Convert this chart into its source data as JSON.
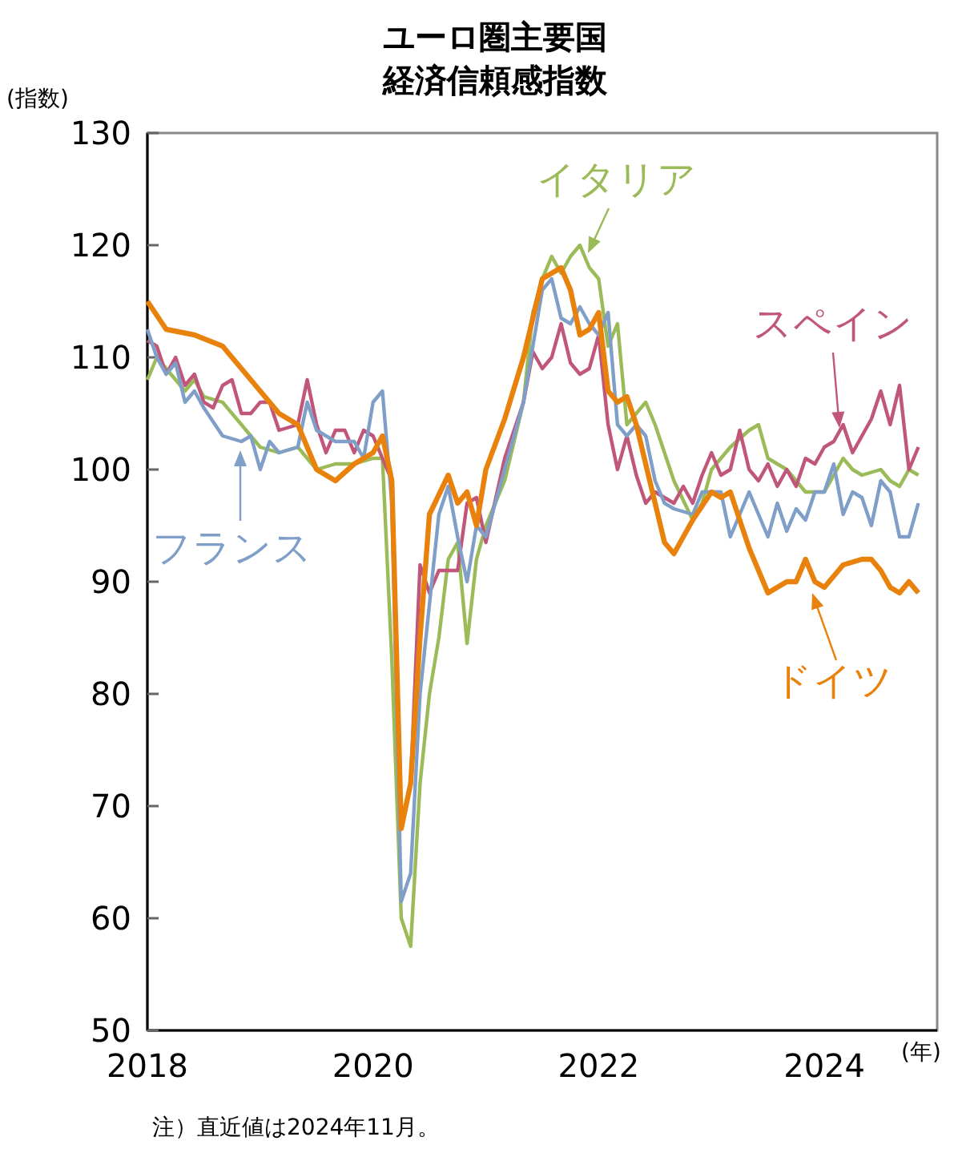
{
  "chart_data": {
    "type": "line",
    "title": "ユーロ圏主要国",
    "subtitle": "経済信頼感指数",
    "ylabel": "(指数)",
    "xlabel": "(年)",
    "xlim": [
      "2018-01",
      "2025-01"
    ],
    "xticks": [
      {
        "value": "2018-01",
        "label": "2018"
      },
      {
        "value": "2020-01",
        "label": "2020"
      },
      {
        "value": "2022-01",
        "label": "2022"
      },
      {
        "value": "2024-01",
        "label": "2024"
      }
    ],
    "ylim": [
      50,
      130
    ],
    "yticks": [
      50,
      60,
      70,
      80,
      90,
      100,
      110,
      120,
      130
    ],
    "grid": false,
    "legend": "right",
    "marker": "none",
    "line_style": "solid",
    "annotations": [
      "注）直近値は2024年11月。"
    ],
    "series": [
      {
        "name": "イタリア",
        "color": "#9bbb59",
        "x": [
          "2018-01",
          "2018-02",
          "2018-03",
          "2018-05",
          "2018-06",
          "2018-07",
          "2018-09",
          "2018-11",
          "2019-01",
          "2019-03",
          "2019-05",
          "2019-07",
          "2019-09",
          "2019-11",
          "2020-01",
          "2020-02",
          "2020-03",
          "2020-04",
          "2020-05",
          "2020-06",
          "2020-07",
          "2020-08",
          "2020-09",
          "2020-10",
          "2020-11",
          "2020-12",
          "2021-01",
          "2021-03",
          "2021-05",
          "2021-06",
          "2021-07",
          "2021-08",
          "2021-09",
          "2021-10",
          "2021-11",
          "2021-12",
          "2022-01",
          "2022-02",
          "2022-03",
          "2022-04",
          "2022-05",
          "2022-06",
          "2022-07",
          "2022-08",
          "2022-09",
          "2022-11",
          "2022-12",
          "2023-01",
          "2023-03",
          "2023-05",
          "2023-06",
          "2023-07",
          "2023-09",
          "2023-11",
          "2024-01",
          "2024-03",
          "2024-04",
          "2024-05",
          "2024-07",
          "2024-08",
          "2024-09",
          "2024-10",
          "2024-11"
        ],
        "values": [
          108,
          110,
          109,
          107,
          108,
          106.5,
          106,
          104,
          102,
          101.5,
          102,
          100,
          100.5,
          100.5,
          101,
          101,
          83,
          60,
          57.5,
          72,
          80,
          85,
          92,
          93.5,
          84.5,
          92,
          95,
          99,
          106,
          114,
          117,
          119,
          117.5,
          119,
          120,
          118,
          117,
          111,
          113,
          104,
          105,
          106,
          104,
          101.5,
          99,
          95.5,
          97,
          100,
          102,
          103.5,
          104,
          101,
          100,
          98,
          98,
          101,
          100,
          99.5,
          100,
          99,
          98.5,
          100,
          99.5
        ]
      },
      {
        "name": "スペイン",
        "color": "#c0567a",
        "x": [
          "2018-01",
          "2018-02",
          "2018-03",
          "2018-04",
          "2018-05",
          "2018-06",
          "2018-07",
          "2018-08",
          "2018-09",
          "2018-10",
          "2018-11",
          "2018-12",
          "2019-01",
          "2019-02",
          "2019-03",
          "2019-05",
          "2019-06",
          "2019-07",
          "2019-08",
          "2019-09",
          "2019-10",
          "2019-11",
          "2019-12",
          "2020-01",
          "2020-02",
          "2020-03",
          "2020-04",
          "2020-05",
          "2020-06",
          "2020-07",
          "2020-08",
          "2020-09",
          "2020-10",
          "2020-11",
          "2020-12",
          "2021-01",
          "2021-03",
          "2021-05",
          "2021-06",
          "2021-07",
          "2021-08",
          "2021-09",
          "2021-10",
          "2021-11",
          "2021-12",
          "2022-01",
          "2022-02",
          "2022-03",
          "2022-04",
          "2022-05",
          "2022-06",
          "2022-07",
          "2022-08",
          "2022-09",
          "2022-10",
          "2022-11",
          "2022-12",
          "2023-01",
          "2023-02",
          "2023-03",
          "2023-04",
          "2023-05",
          "2023-06",
          "2023-07",
          "2023-08",
          "2023-09",
          "2023-10",
          "2023-11",
          "2023-12",
          "2024-01",
          "2024-02",
          "2024-03",
          "2024-04",
          "2024-05",
          "2024-06",
          "2024-07",
          "2024-08",
          "2024-09",
          "2024-10",
          "2024-11"
        ],
        "values": [
          111.5,
          111,
          108.5,
          110,
          107.5,
          108.5,
          106,
          105.5,
          107.5,
          108,
          105,
          105,
          106,
          106,
          103.5,
          104,
          108,
          104,
          101.5,
          103.5,
          103.5,
          101.5,
          103.5,
          103,
          101,
          99,
          68,
          72,
          91.5,
          89,
          91,
          91,
          91,
          97,
          97.5,
          93.5,
          101,
          106,
          110.5,
          109,
          110,
          113,
          109.5,
          108.5,
          109,
          112,
          104,
          100,
          103,
          99.5,
          97,
          98,
          97.5,
          97,
          98.5,
          97,
          99.5,
          101.5,
          99.5,
          100,
          103.5,
          100,
          99,
          100.5,
          98.5,
          100,
          98.5,
          101,
          100.5,
          102,
          102.5,
          104,
          101.5,
          103,
          104.5,
          107,
          104,
          107.5,
          100,
          102
        ]
      },
      {
        "name": "フランス",
        "color": "#7f9fc8",
        "x": [
          "2018-01",
          "2018-02",
          "2018-03",
          "2018-04",
          "2018-05",
          "2018-06",
          "2018-07",
          "2018-09",
          "2018-11",
          "2018-12",
          "2019-01",
          "2019-02",
          "2019-03",
          "2019-05",
          "2019-06",
          "2019-07",
          "2019-09",
          "2019-11",
          "2019-12",
          "2020-01",
          "2020-02",
          "2020-03",
          "2020-04",
          "2020-05",
          "2020-06",
          "2020-07",
          "2020-08",
          "2020-09",
          "2020-10",
          "2020-11",
          "2020-12",
          "2021-01",
          "2021-03",
          "2021-05",
          "2021-07",
          "2021-08",
          "2021-09",
          "2021-10",
          "2021-11",
          "2021-12",
          "2022-01",
          "2022-02",
          "2022-03",
          "2022-04",
          "2022-05",
          "2022-06",
          "2022-07",
          "2022-08",
          "2022-09",
          "2022-11",
          "2022-12",
          "2023-01",
          "2023-02",
          "2023-03",
          "2023-05",
          "2023-06",
          "2023-07",
          "2023-08",
          "2023-09",
          "2023-10",
          "2023-11",
          "2023-12",
          "2024-01",
          "2024-02",
          "2024-03",
          "2024-04",
          "2024-05",
          "2024-06",
          "2024-07",
          "2024-08",
          "2024-09",
          "2024-10",
          "2024-11"
        ],
        "values": [
          112.5,
          110,
          108.5,
          109.5,
          106,
          107,
          105.5,
          103,
          102.5,
          103,
          100,
          102.5,
          101.5,
          102,
          106,
          103.5,
          102.5,
          102.5,
          101,
          106,
          107,
          97,
          61.5,
          64,
          80,
          88,
          96,
          98.5,
          94,
          90,
          95,
          94,
          100,
          106,
          116,
          117,
          113.5,
          113,
          114.5,
          113,
          112,
          114,
          104,
          103,
          104,
          103,
          99,
          97,
          96.5,
          96,
          98,
          98,
          98,
          94,
          98,
          96,
          94,
          97,
          94.5,
          96.5,
          95.5,
          98,
          98,
          100.5,
          96,
          98,
          97.5,
          95,
          99,
          98,
          94,
          94,
          97
        ]
      },
      {
        "name": "ドイツ",
        "color": "#e8820c",
        "x": [
          "2018-01",
          "2018-03",
          "2018-06",
          "2018-09",
          "2018-11",
          "2019-01",
          "2019-03",
          "2019-05",
          "2019-07",
          "2019-09",
          "2019-11",
          "2020-01",
          "2020-02",
          "2020-03",
          "2020-04",
          "2020-05",
          "2020-06",
          "2020-07",
          "2020-09",
          "2020-10",
          "2020-11",
          "2020-12",
          "2021-01",
          "2021-03",
          "2021-05",
          "2021-07",
          "2021-09",
          "2021-10",
          "2021-11",
          "2021-12",
          "2022-01",
          "2022-02",
          "2022-03",
          "2022-04",
          "2022-05",
          "2022-07",
          "2022-08",
          "2022-09",
          "2022-11",
          "2023-01",
          "2023-02",
          "2023-03",
          "2023-05",
          "2023-07",
          "2023-09",
          "2023-10",
          "2023-11",
          "2023-12",
          "2024-01",
          "2024-03",
          "2024-05",
          "2024-06",
          "2024-07",
          "2024-08",
          "2024-09",
          "2024-10",
          "2024-11"
        ],
        "values": [
          115,
          112.5,
          112,
          111,
          109,
          107,
          105,
          104,
          100,
          99,
          100.5,
          101.5,
          103,
          99,
          68,
          72,
          85,
          96,
          99.5,
          97,
          98,
          95,
          100,
          104.5,
          110,
          117,
          118,
          116,
          112,
          112.5,
          114,
          107,
          106,
          106.5,
          104,
          97,
          93.5,
          92.5,
          95.5,
          98,
          97.5,
          98,
          93,
          89,
          90,
          90,
          92,
          90,
          89.5,
          91.5,
          92,
          92,
          91,
          89.5,
          89,
          90,
          89
        ]
      }
    ]
  }
}
